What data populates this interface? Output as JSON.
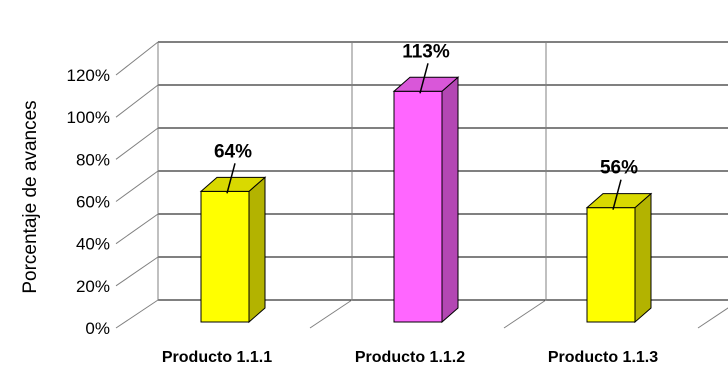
{
  "chart_data": {
    "type": "bar",
    "style": "3d-column",
    "categories": [
      "Producto 1.1.1",
      "Producto 1.1.2",
      "Producto 1.1.3"
    ],
    "values": [
      64,
      113,
      56
    ],
    "data_labels": [
      "64%",
      "113%",
      "56%"
    ],
    "bar_colors": [
      "#ffff00",
      "#ff66ff",
      "#ffff00"
    ],
    "ylabel": "Porcentaje de avances",
    "xlabel": "",
    "title": "",
    "ylim": [
      0,
      120
    ],
    "yticks": [
      0,
      20,
      40,
      60,
      80,
      100,
      120
    ],
    "ytick_labels": [
      "0%",
      "20%",
      "40%",
      "60%",
      "80%",
      "100%",
      "120%"
    ],
    "grid": true,
    "legend": "none"
  }
}
